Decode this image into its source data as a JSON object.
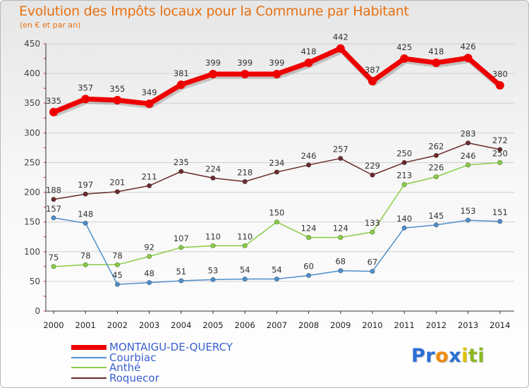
{
  "chart_data": {
    "type": "line",
    "title": "Evolution des Impôts locaux pour la Commune par Habitant",
    "subtitle": "(en € et par an)",
    "x": [
      "2000",
      "2001",
      "2002",
      "2003",
      "2004",
      "2005",
      "2006",
      "2007",
      "2008",
      "2009",
      "2010",
      "2011",
      "2012",
      "2013",
      "2014"
    ],
    "ylim": [
      0,
      450
    ],
    "yticks": [
      "0",
      "50",
      "100",
      "150",
      "200",
      "250",
      "300",
      "350",
      "400",
      "450"
    ],
    "grid": "horizontal",
    "series": [
      {
        "name": "MONTAIGU-DE-QUERCY",
        "color": "#ee0000",
        "values": [
          335,
          357,
          355,
          349,
          381,
          399,
          399,
          399,
          418,
          442,
          387,
          425,
          418,
          426,
          380
        ]
      },
      {
        "name": "Courbiac",
        "color": "#4f8fcc",
        "values": [
          157,
          148,
          45,
          48,
          51,
          53,
          54,
          54,
          60,
          68,
          67,
          140,
          145,
          153,
          151
        ]
      },
      {
        "name": "Anthé",
        "color": "#88cc44",
        "values": [
          75,
          78,
          78,
          92,
          107,
          110,
          110,
          150,
          124,
          124,
          133,
          213,
          226,
          246,
          250
        ]
      },
      {
        "name": "Roquecor",
        "color": "#6b2a2a",
        "values": [
          188,
          197,
          201,
          211,
          235,
          224,
          218,
          234,
          246,
          257,
          229,
          250,
          262,
          283,
          272
        ]
      }
    ]
  },
  "logo": {
    "letters": [
      {
        "ch": "P",
        "color": "#2a6fd6"
      },
      {
        "ch": "r",
        "color": "#2a6fd6"
      },
      {
        "ch": "o",
        "color": "#f08a10"
      },
      {
        "ch": "x",
        "color": "#2a6fd6"
      },
      {
        "ch": "i",
        "color": "#e0c400"
      },
      {
        "ch": "t",
        "color": "#8ab820"
      },
      {
        "ch": "i",
        "color": "#8ab820"
      }
    ]
  }
}
